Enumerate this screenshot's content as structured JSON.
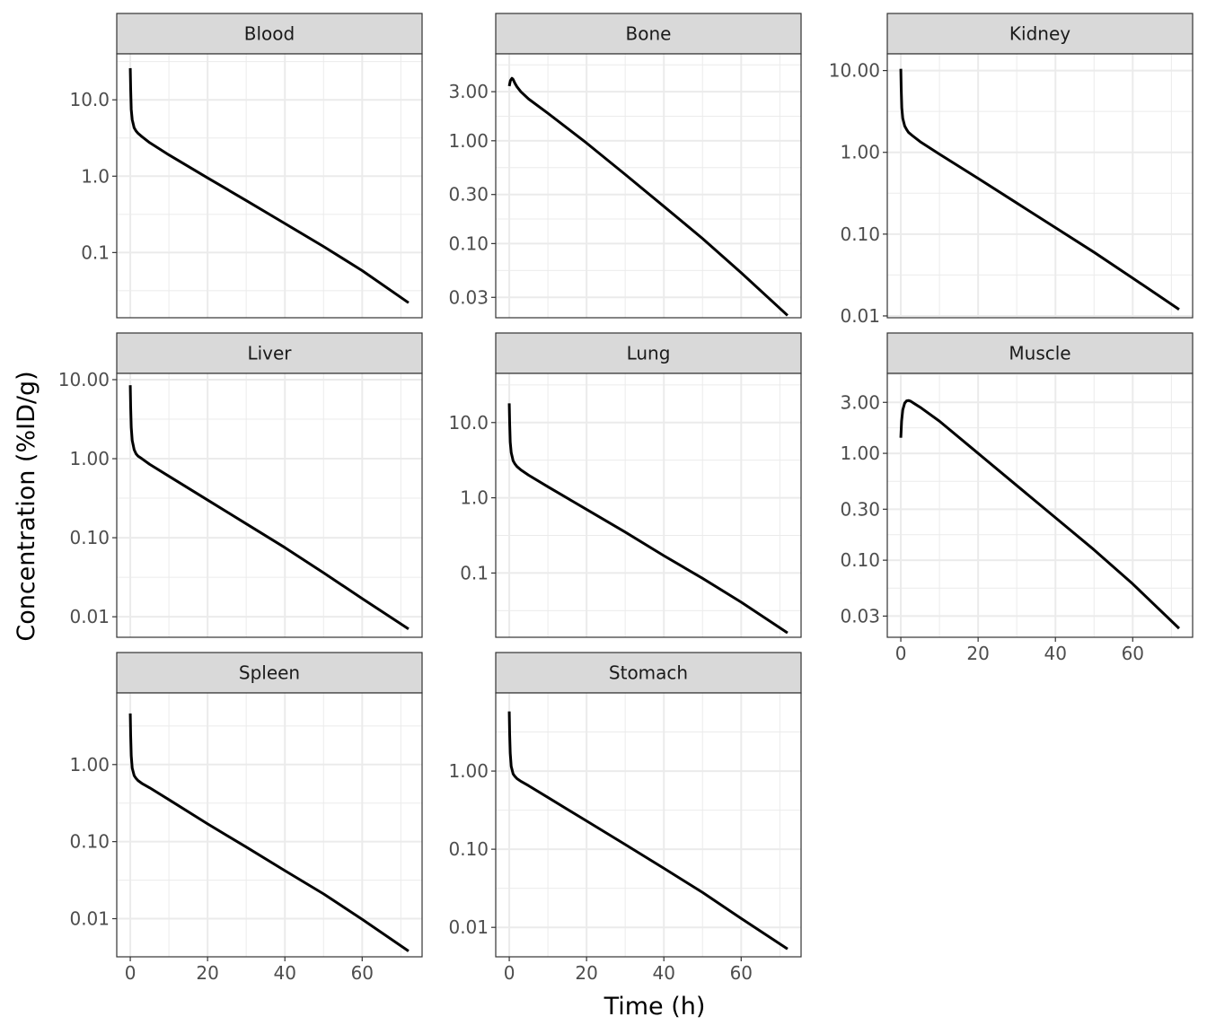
{
  "chart_data": {
    "type": "line",
    "facet_layout": "wrap, 3 columns, free y scales",
    "xlabel": "Time (h)",
    "ylabel": "Concentration (%ID/g)",
    "y_scale": "log10",
    "grid": true,
    "x_ticks": [
      0,
      20,
      40,
      60
    ],
    "xlim": [
      -3.5,
      75.5
    ],
    "line_color": "#000000",
    "panels": [
      {
        "name": "Blood",
        "ylim": [
          0.014,
          40
        ],
        "y_ticks": [
          10,
          1,
          0.1
        ],
        "y_tick_labels": [
          "10.0",
          "1.0",
          "0.1"
        ],
        "x": [
          0,
          0.1,
          0.25,
          0.5,
          1,
          1.5,
          2,
          3,
          5,
          10,
          20,
          30,
          40,
          50,
          60,
          72
        ],
        "y": [
          26,
          14,
          7.5,
          5.5,
          4.3,
          3.9,
          3.65,
          3.3,
          2.75,
          1.9,
          0.95,
          0.48,
          0.24,
          0.12,
          0.058,
          0.022
        ]
      },
      {
        "name": "Bone",
        "ylim": [
          0.019,
          7
        ],
        "y_ticks": [
          3,
          1,
          0.3,
          0.1,
          0.03
        ],
        "y_tick_labels": [
          "3.00",
          "1.00",
          "0.30",
          "0.10",
          "0.03"
        ],
        "x": [
          0,
          0.3,
          0.7,
          1,
          1.5,
          2,
          3,
          5,
          10,
          20,
          30,
          40,
          50,
          60,
          72
        ],
        "y": [
          3.4,
          3.85,
          4.05,
          3.95,
          3.6,
          3.35,
          3.0,
          2.55,
          1.85,
          0.95,
          0.47,
          0.23,
          0.112,
          0.052,
          0.02
        ]
      },
      {
        "name": "Kidney",
        "ylim": [
          0.0095,
          16
        ],
        "y_ticks": [
          10,
          1,
          0.1,
          0.01
        ],
        "y_tick_labels": [
          "10.00",
          "1.00",
          "0.10",
          "0.01"
        ],
        "x": [
          0,
          0.1,
          0.25,
          0.5,
          1,
          1.5,
          2,
          3,
          5,
          10,
          20,
          30,
          40,
          50,
          60,
          72
        ],
        "y": [
          10.5,
          6.0,
          3.5,
          2.6,
          2.1,
          1.9,
          1.75,
          1.6,
          1.35,
          0.95,
          0.48,
          0.24,
          0.12,
          0.06,
          0.029,
          0.012
        ]
      },
      {
        "name": "Liver",
        "ylim": [
          0.0055,
          12
        ],
        "y_ticks": [
          10,
          1,
          0.1,
          0.01
        ],
        "y_tick_labels": [
          "10.00",
          "1.00",
          "0.10",
          "0.01"
        ],
        "x": [
          0,
          0.1,
          0.25,
          0.5,
          1,
          1.5,
          2,
          3,
          5,
          10,
          20,
          30,
          40,
          50,
          60,
          72
        ],
        "y": [
          8.5,
          4.5,
          2.5,
          1.7,
          1.3,
          1.15,
          1.08,
          1.0,
          0.85,
          0.6,
          0.3,
          0.15,
          0.075,
          0.036,
          0.017,
          0.007
        ]
      },
      {
        "name": "Lung",
        "ylim": [
          0.014,
          45
        ],
        "y_ticks": [
          10,
          1,
          0.1
        ],
        "y_tick_labels": [
          "10.0",
          "1.0",
          "0.1"
        ],
        "x": [
          0,
          0.1,
          0.25,
          0.5,
          1,
          1.5,
          2,
          3,
          5,
          10,
          20,
          30,
          40,
          50,
          60,
          72
        ],
        "y": [
          18,
          10,
          5.5,
          4.0,
          3.1,
          2.8,
          2.6,
          2.35,
          2.0,
          1.4,
          0.7,
          0.35,
          0.17,
          0.085,
          0.041,
          0.016
        ]
      },
      {
        "name": "Muscle",
        "ylim": [
          0.019,
          5.6
        ],
        "y_ticks": [
          3,
          1,
          0.3,
          0.1,
          0.03
        ],
        "y_tick_labels": [
          "3.00",
          "1.00",
          "0.30",
          "0.10",
          "0.03"
        ],
        "x": [
          0,
          0.2,
          0.5,
          1,
          1.5,
          2,
          2.5,
          3,
          5,
          10,
          20,
          30,
          40,
          50,
          60,
          72
        ],
        "y": [
          1.4,
          2.0,
          2.55,
          2.95,
          3.1,
          3.12,
          3.08,
          3.0,
          2.7,
          2.0,
          1.0,
          0.5,
          0.25,
          0.125,
          0.06,
          0.023
        ]
      },
      {
        "name": "Spleen",
        "ylim": [
          0.0032,
          8.5
        ],
        "y_ticks": [
          1,
          0.1,
          0.01
        ],
        "y_tick_labels": [
          "1.00",
          "0.10",
          "0.01"
        ],
        "x": [
          0,
          0.1,
          0.25,
          0.5,
          1,
          1.5,
          2,
          3,
          5,
          10,
          20,
          30,
          40,
          50,
          60,
          72
        ],
        "y": [
          4.6,
          2.4,
          1.3,
          0.9,
          0.72,
          0.66,
          0.62,
          0.57,
          0.5,
          0.35,
          0.17,
          0.085,
          0.042,
          0.021,
          0.0098,
          0.0038
        ]
      },
      {
        "name": "Stomach",
        "ylim": [
          0.0042,
          10
        ],
        "y_ticks": [
          1,
          0.1,
          0.01
        ],
        "y_tick_labels": [
          "1.00",
          "0.10",
          "0.01"
        ],
        "x": [
          0,
          0.1,
          0.25,
          0.5,
          1,
          1.5,
          2,
          3,
          5,
          10,
          20,
          30,
          40,
          50,
          60,
          72
        ],
        "y": [
          5.8,
          3.0,
          1.7,
          1.15,
          0.92,
          0.85,
          0.8,
          0.74,
          0.65,
          0.46,
          0.23,
          0.115,
          0.057,
          0.028,
          0.013,
          0.0053
        ]
      }
    ]
  }
}
